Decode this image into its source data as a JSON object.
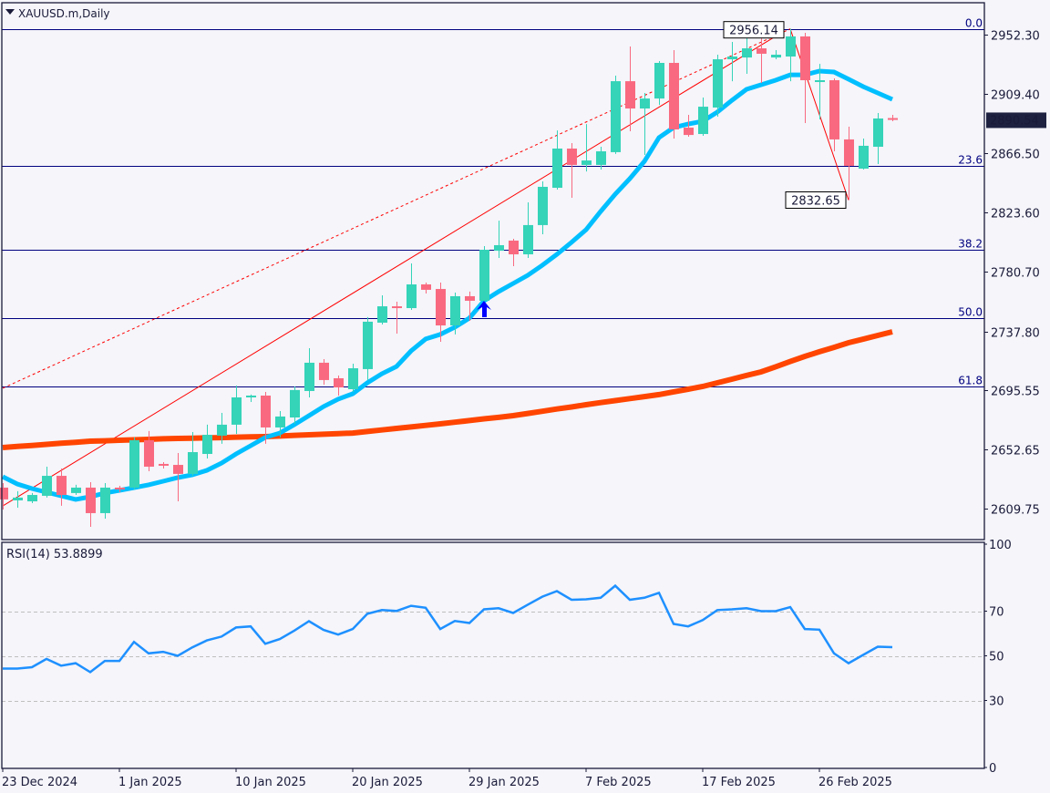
{
  "header": {
    "title": "XAUUSD.m,Daily",
    "menu_icon": "triangle-down-icon"
  },
  "colors": {
    "background": "#f5f5fa",
    "frame": "#1a1a3a",
    "bull": "#35d3b8",
    "bear": "#f96a80",
    "ma_fast": "#00bfff",
    "ma_slow": "#ff4500",
    "trend": "#ff0000",
    "fib": "#000080",
    "rsi": "#1e90ff",
    "rsi_levels": "#c0c0c0",
    "price_label_bg": "#1e2140",
    "arrow": "#0000ff"
  },
  "chart_data": {
    "type": "candlestick",
    "symbol": "XAUUSD.m",
    "timeframe": "Daily",
    "ylim": [
      2587.7,
      2975.0
    ],
    "y_ticks": [
      "2952.30",
      "2909.40",
      "2866.50",
      "2823.60",
      "2780.70",
      "2737.80",
      "2695.55",
      "2652.65",
      "2609.75"
    ],
    "x_ticks": [
      {
        "label": "23 Dec 2024",
        "index": 0
      },
      {
        "label": "1 Jan 2025",
        "index": 8
      },
      {
        "label": "10 Jan 2025",
        "index": 16
      },
      {
        "label": "20 Jan 2025",
        "index": 24
      },
      {
        "label": "29 Jan 2025",
        "index": 32
      },
      {
        "label": "7 Feb 2025",
        "index": 40
      },
      {
        "label": "17 Feb 2025",
        "index": 48
      },
      {
        "label": "26 Feb 2025",
        "index": 56
      }
    ],
    "current_price": "2890.54",
    "ohlc": [
      [
        2625.2,
        2628.5,
        2609.4,
        2616.7
      ],
      [
        2616.0,
        2622.6,
        2610.7,
        2618.0
      ],
      [
        2615.3,
        2621.3,
        2614.0,
        2619.9
      ],
      [
        2619.3,
        2640.3,
        2618.0,
        2633.7
      ],
      [
        2633.7,
        2639.0,
        2612.1,
        2619.9
      ],
      [
        2621.3,
        2627.2,
        2619.9,
        2625.2
      ],
      [
        2625.2,
        2629.1,
        2596.9,
        2606.8
      ],
      [
        2606.8,
        2628.5,
        2602.8,
        2625.2
      ],
      [
        2625.2,
        2626.5,
        2621.9,
        2623.9
      ],
      [
        2625.2,
        2661.4,
        2623.9,
        2659.4
      ],
      [
        2659.4,
        2666.0,
        2637.0,
        2640.3
      ],
      [
        2642.3,
        2643.6,
        2639.0,
        2641.0
      ],
      [
        2641.6,
        2650.2,
        2615.3,
        2635.1
      ],
      [
        2635.1,
        2665.3,
        2633.7,
        2650.8
      ],
      [
        2649.5,
        2670.6,
        2646.2,
        2663.3
      ],
      [
        2662.7,
        2679.1,
        2656.8,
        2670.6
      ],
      [
        2670.6,
        2698.8,
        2664.0,
        2690.3
      ],
      [
        2690.3,
        2692.3,
        2687.0,
        2691.6
      ],
      [
        2691.6,
        2694.2,
        2656.8,
        2668.6
      ],
      [
        2668.6,
        2680.4,
        2661.4,
        2676.5
      ],
      [
        2675.8,
        2698.2,
        2671.2,
        2695.6
      ],
      [
        2694.9,
        2725.8,
        2690.3,
        2715.3
      ],
      [
        2715.3,
        2717.9,
        2699.5,
        2702.8
      ],
      [
        2704.1,
        2706.1,
        2691.6,
        2697.5
      ],
      [
        2696.2,
        2714.6,
        2694.2,
        2711.3
      ],
      [
        2710.7,
        2748.2,
        2702.8,
        2744.9
      ],
      [
        2744.2,
        2763.9,
        2742.9,
        2756.0
      ],
      [
        2756.0,
        2759.3,
        2736.3,
        2754.7
      ],
      [
        2754.7,
        2786.9,
        2753.4,
        2771.8
      ],
      [
        2771.8,
        2773.1,
        2765.2,
        2767.9
      ],
      [
        2768.5,
        2773.1,
        2730.4,
        2742.2
      ],
      [
        2742.2,
        2765.9,
        2735.7,
        2763.3
      ],
      [
        2763.3,
        2766.6,
        2745.5,
        2760.0
      ],
      [
        2760.0,
        2799.4,
        2758.7,
        2796.8
      ],
      [
        2796.1,
        2817.8,
        2790.9,
        2800.1
      ],
      [
        2803.4,
        2804.7,
        2785.0,
        2793.5
      ],
      [
        2793.5,
        2831.0,
        2790.9,
        2814.6
      ],
      [
        2814.6,
        2846.1,
        2808.0,
        2842.2
      ],
      [
        2841.5,
        2882.9,
        2840.2,
        2869.8
      ],
      [
        2869.8,
        2873.7,
        2834.3,
        2858.0
      ],
      [
        2858.0,
        2887.5,
        2853.3,
        2861.2
      ],
      [
        2858.0,
        2871.1,
        2854.7,
        2867.8
      ],
      [
        2867.2,
        2922.4,
        2865.9,
        2918.4
      ],
      [
        2918.4,
        2943.4,
        2882.3,
        2898.7
      ],
      [
        2898.7,
        2909.9,
        2865.2,
        2905.9
      ],
      [
        2905.9,
        2932.9,
        2901.3,
        2931.6
      ],
      [
        2931.6,
        2940.8,
        2877.0,
        2883.6
      ],
      [
        2884.9,
        2894.1,
        2878.3,
        2879.6
      ],
      [
        2880.3,
        2906.6,
        2879.0,
        2900.0
      ],
      [
        2899.4,
        2937.5,
        2892.8,
        2934.2
      ],
      [
        2934.2,
        2946.7,
        2918.4,
        2936.2
      ],
      [
        2935.5,
        2955.3,
        2923.7,
        2942.1
      ],
      [
        2942.1,
        2949.3,
        2917.1,
        2938.2
      ],
      [
        2935.5,
        2940.8,
        2934.2,
        2937.5
      ],
      [
        2936.2,
        2956.14,
        2918.4,
        2950.7
      ],
      [
        2950.7,
        2953.3,
        2888.2,
        2919.1
      ],
      [
        2918.4,
        2930.9,
        2890.8,
        2919.1
      ],
      [
        2919.1,
        2920.4,
        2867.8,
        2876.4
      ],
      [
        2876.4,
        2885.6,
        2832.65,
        2857.3
      ],
      [
        2855.3,
        2877.0,
        2854.7,
        2871.8
      ],
      [
        2871.1,
        2895.4,
        2858.6,
        2891.5
      ],
      [
        2891.8,
        2894.1,
        2889.5,
        2890.54
      ]
    ],
    "ma_fast": [
      2633.1,
      2627.8,
      2624.5,
      2621.9,
      2619.3,
      2616.7,
      2618.6,
      2621.3,
      2623.2,
      2625.2,
      2627.2,
      2629.8,
      2632.4,
      2634.4,
      2637.7,
      2642.9,
      2649.5,
      2655.4,
      2661.4,
      2664.6,
      2670.6,
      2677.1,
      2683.7,
      2689.0,
      2692.9,
      2700.8,
      2707.4,
      2712.6,
      2723.8,
      2732.4,
      2735.7,
      2740.9,
      2747.5,
      2760.0,
      2766.6,
      2772.5,
      2778.4,
      2785.6,
      2793.5,
      2802.1,
      2811.3,
      2824.4,
      2836.9,
      2848.1,
      2860.6,
      2877.7,
      2884.9,
      2887.5,
      2889.5,
      2896.1,
      2904.6,
      2912.5,
      2915.8,
      2919.1,
      2923.0,
      2923.0,
      2925.7,
      2925.0,
      2919.8,
      2914.5,
      2909.9,
      2905.3
    ],
    "ma_slow": [
      2654.1,
      2654.9,
      2655.6,
      2656.4,
      2657.2,
      2657.9,
      2658.7,
      2659.0,
      2659.4,
      2659.7,
      2660.0,
      2660.4,
      2660.7,
      2660.9,
      2661.1,
      2661.3,
      2661.6,
      2661.8,
      2662.0,
      2662.4,
      2662.9,
      2663.3,
      2663.7,
      2664.2,
      2664.6,
      2665.7,
      2666.8,
      2667.9,
      2669.0,
      2670.1,
      2671.2,
      2672.4,
      2673.6,
      2674.8,
      2675.9,
      2677.1,
      2678.7,
      2680.3,
      2681.9,
      2683.4,
      2685.0,
      2686.5,
      2688.0,
      2689.4,
      2690.9,
      2692.3,
      2694.3,
      2696.2,
      2698.2,
      2700.8,
      2703.4,
      2706.1,
      2708.7,
      2712.4,
      2716.2,
      2719.9,
      2723.2,
      2726.4,
      2729.7,
      2732.3,
      2735.0,
      2737.6
    ],
    "fibonacci": {
      "levels": [
        {
          "label": "0.0",
          "price": 2956.14
        },
        {
          "label": "23.6",
          "price": 2857.6
        },
        {
          "label": "38.2",
          "price": 2796.6
        },
        {
          "label": "50.0",
          "price": 2747.4
        },
        {
          "label": "61.8",
          "price": 2698.1
        }
      ],
      "trend_line_solid": [
        {
          "index": 0,
          "price": 2612.0
        },
        {
          "index": 53.5,
          "price": 2954.0
        }
      ],
      "trend_line_dotted": [
        {
          "index": 0,
          "price": 2696.9
        },
        {
          "index": 54,
          "price": 2956.14
        }
      ],
      "swing_line": [
        {
          "index": 54,
          "price": 2956.14
        },
        {
          "index": 58,
          "price": 2832.65
        }
      ],
      "high_label": "2956.14",
      "low_label": "2832.65"
    },
    "signal_arrow": {
      "index": 33,
      "price": 2756.0,
      "direction": "up"
    },
    "rsi": {
      "title": "RSI(14) 53.8899",
      "period": 14,
      "ylim": [
        0,
        100
      ],
      "y_ticks": [
        "100",
        "70",
        "50",
        "30",
        "0"
      ],
      "levels": [
        70,
        50,
        30
      ],
      "values": [
        44.3,
        44.3,
        44.9,
        48.6,
        45.6,
        46.7,
        42.7,
        47.7,
        47.7,
        56.2,
        51.1,
        51.8,
        50.0,
        53.8,
        56.9,
        58.6,
        62.7,
        63.2,
        55.4,
        57.5,
        61.3,
        65.5,
        61.6,
        59.5,
        62.0,
        68.8,
        70.5,
        70.1,
        72.4,
        71.5,
        62.0,
        65.6,
        64.7,
        70.8,
        71.3,
        69.2,
        72.9,
        76.5,
        79.0,
        75.1,
        75.3,
        76.0,
        81.4,
        75.1,
        76.0,
        78.2,
        64.3,
        63.2,
        66.0,
        70.5,
        70.8,
        71.3,
        70.0,
        70.0,
        71.8,
        62.0,
        61.7,
        51.1,
        46.7,
        50.4,
        54.1,
        53.89
      ]
    }
  }
}
